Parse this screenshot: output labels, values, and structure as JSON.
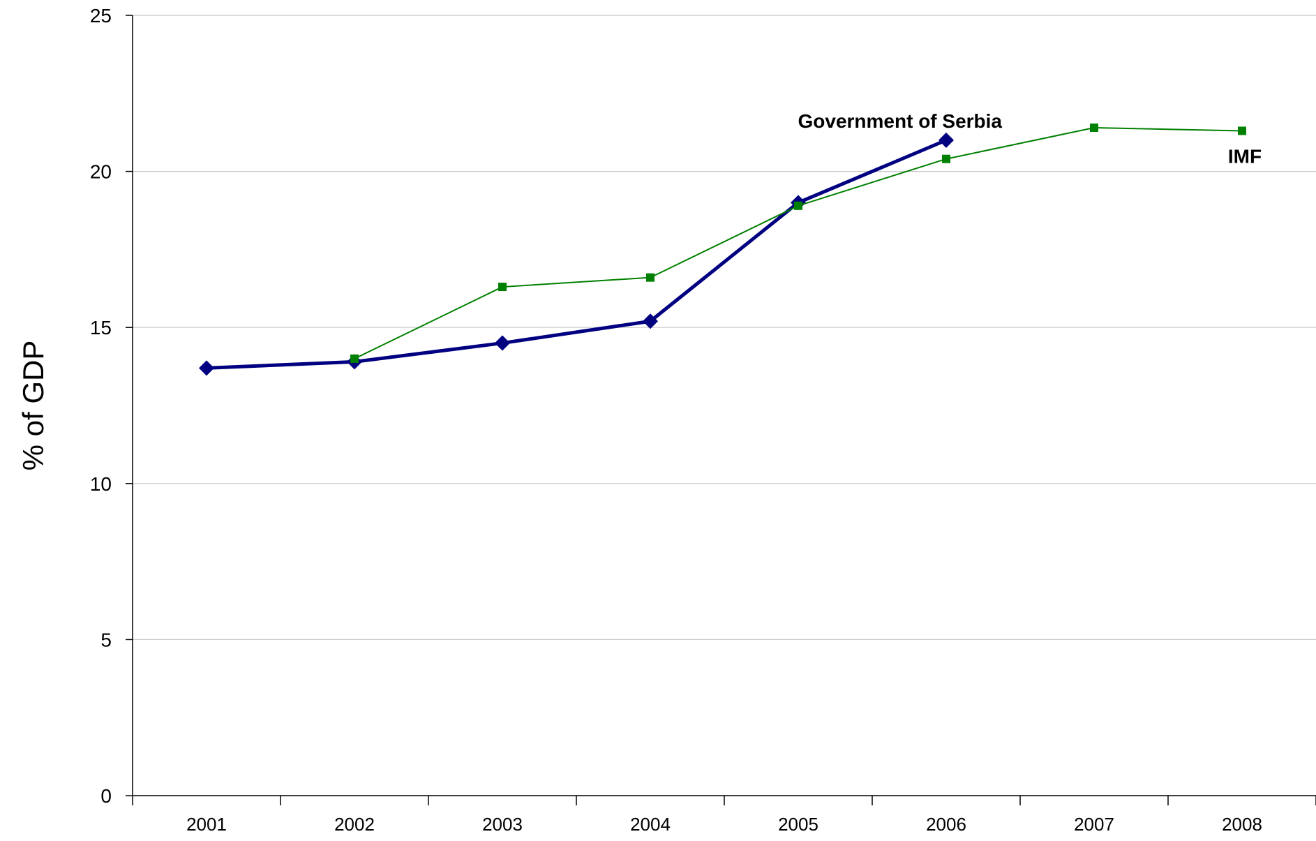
{
  "chart_data": {
    "type": "line",
    "title": "",
    "xlabel": "",
    "ylabel": "% of GDP",
    "categories": [
      "2001",
      "2002",
      "2003",
      "2004",
      "2005",
      "2006",
      "2007",
      "2008"
    ],
    "ylim": [
      0,
      25
    ],
    "yticks": [
      0,
      5,
      10,
      15,
      20,
      25
    ],
    "grid": "horizontal",
    "legend": "none",
    "series": [
      {
        "name": "Government of Serbia",
        "values": [
          13.7,
          13.9,
          14.5,
          15.2,
          19.0,
          21.0,
          null,
          null
        ],
        "color": "#000080",
        "marker": "diamond"
      },
      {
        "name": "IMF",
        "values": [
          null,
          14.0,
          16.3,
          16.6,
          18.9,
          20.4,
          21.4,
          21.3
        ],
        "color": "#008000",
        "marker": "square"
      }
    ]
  }
}
